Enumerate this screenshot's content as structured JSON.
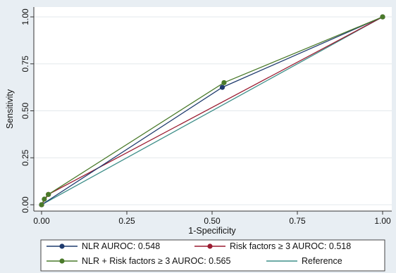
{
  "chart_data": {
    "type": "line",
    "title": "",
    "xlabel": "1-Specificity",
    "ylabel": "Sensitivity",
    "xlim": [
      0,
      1
    ],
    "ylim": [
      0,
      1
    ],
    "xticks": [
      "0.00",
      "0.25",
      "0.50",
      "0.75",
      "1.00"
    ],
    "yticks": [
      "0.00",
      "0.25",
      "0.50",
      "0.75",
      "1.00"
    ],
    "grid": "horizontal",
    "legend_position": "bottom",
    "series": [
      {
        "name": "NLR AUROC: 0.548",
        "color": "#1f3b6e",
        "markers": true,
        "x": [
          0,
          0.53,
          1
        ],
        "y": [
          0,
          0.625,
          1
        ]
      },
      {
        "name": "Risk factors ≥ 3 AUROC: 0.518",
        "color": "#9b1c31",
        "markers": true,
        "x": [
          0,
          0.02,
          1
        ],
        "y": [
          0,
          0.055,
          1
        ]
      },
      {
        "name": "NLR + Risk factors ≥ 3 AUROC: 0.565",
        "color": "#4a7a2a",
        "markers": true,
        "x": [
          0,
          0.008,
          0.02,
          0.535,
          1
        ],
        "y": [
          0,
          0.03,
          0.055,
          0.65,
          1
        ]
      },
      {
        "name": "Reference",
        "color": "#3f8f8a",
        "markers": false,
        "x": [
          0,
          1
        ],
        "y": [
          0,
          1
        ]
      }
    ]
  }
}
